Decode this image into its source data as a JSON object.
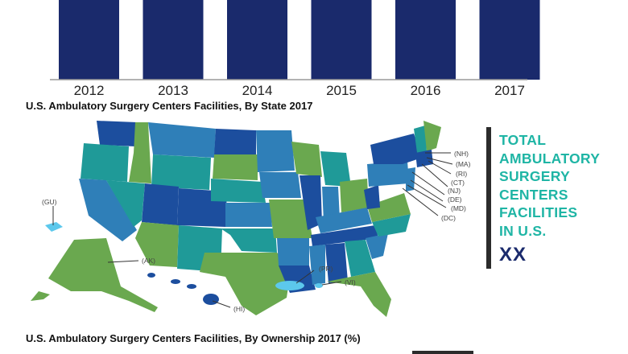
{
  "chart_data": [
    {
      "type": "bar",
      "categories": [
        "2012",
        "2013",
        "2014",
        "2015",
        "2016",
        "2017"
      ],
      "values": [
        null,
        null,
        null,
        null,
        null,
        null
      ],
      "title": "",
      "xlabel": "",
      "ylabel": "",
      "color": "#1a2a6c"
    }
  ],
  "map_section": {
    "title": "U.S. Ambulatory Surgery Centers Facilities, By State 2017",
    "colors": {
      "dark_blue": "#1c4e9e",
      "mid_blue": "#2f7fb8",
      "teal": "#1f9a98",
      "green": "#6aa84f",
      "light_blue": "#5cc8ec"
    },
    "callouts": [
      "(NH)",
      "(MA)",
      "(RI)",
      "(CT)",
      "(NJ)",
      "(DE)",
      "(MD)",
      "(DC)",
      "(GU)",
      "(AK)",
      "(HI)",
      "(PR)",
      "(VI)"
    ]
  },
  "total_box": {
    "lines": [
      "TOTAL",
      "AMBULATORY",
      "SURGERY",
      "CENTERS",
      "FACILITIES",
      "IN U.S."
    ],
    "value": "XX",
    "text_color": "#1fb5a5",
    "value_color": "#1a2a6c"
  },
  "ownership_section": {
    "title": "U.S. Ambulatory Surgery Centers Facilities, By Ownership 2017 (%)"
  }
}
